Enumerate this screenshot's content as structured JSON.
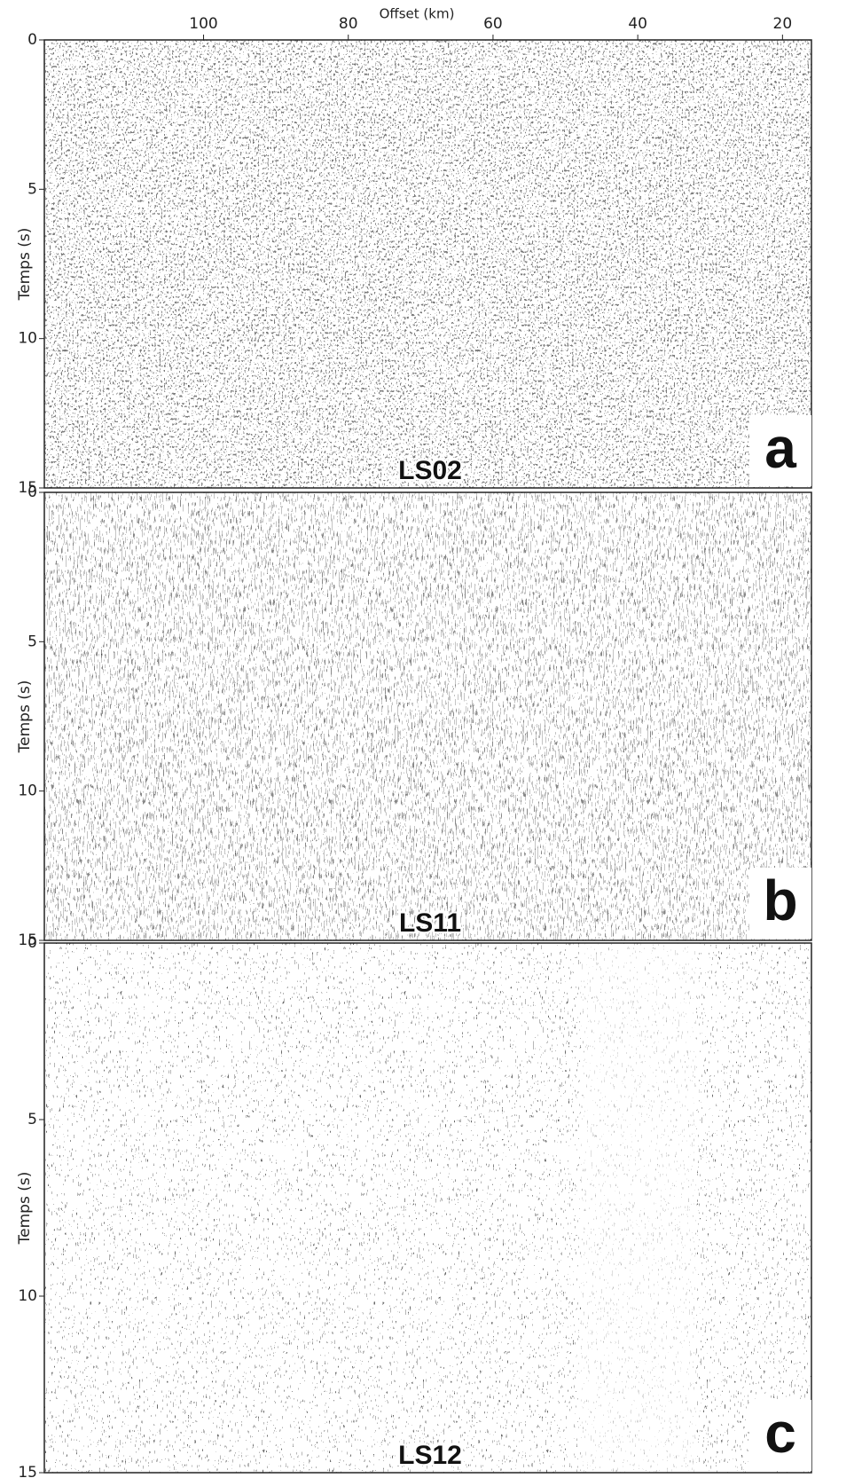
{
  "chart_data": [
    {
      "type": "seismic",
      "title": "LS02",
      "panel_label": "a",
      "ylabel": "Temps (s)",
      "xlabel": "Offset (km)",
      "xlim": [
        122,
        16
      ],
      "xticks": [
        100,
        80,
        60,
        40,
        20
      ],
      "ylim": [
        0,
        15
      ],
      "yticks": [
        0,
        5,
        10,
        15
      ]
    },
    {
      "type": "seismic",
      "title": "LS11",
      "panel_label": "b",
      "ylabel": "Temps (s)",
      "xlim": [
        122,
        16
      ],
      "ylim": [
        0,
        15
      ],
      "yticks": [
        0,
        5,
        10,
        15
      ]
    },
    {
      "type": "seismic",
      "title": "LS12",
      "panel_label": "c",
      "ylabel": "Temps (s)",
      "xlim": [
        122,
        16
      ],
      "ylim": [
        0,
        15
      ],
      "yticks": [
        0,
        5,
        10,
        15
      ]
    }
  ]
}
